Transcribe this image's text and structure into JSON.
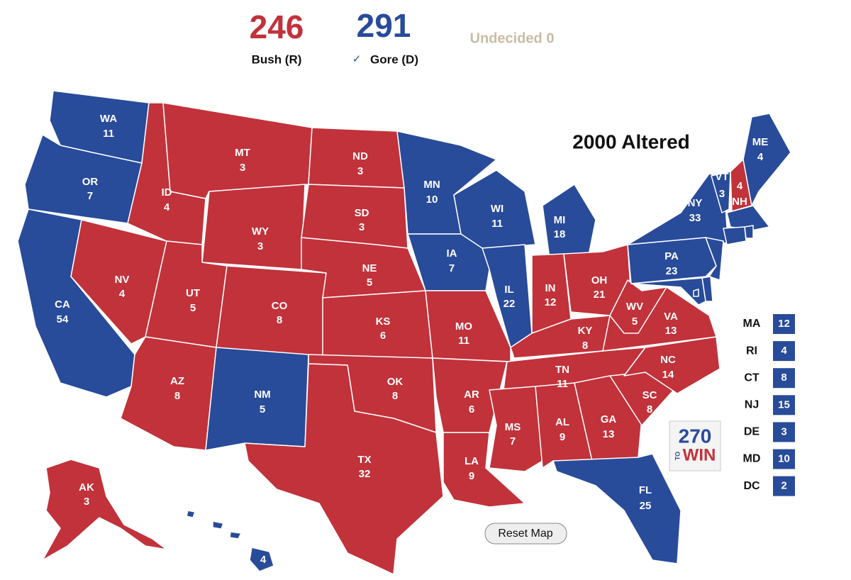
{
  "header": {
    "bush": {
      "count": 246,
      "label": "Bush (R)"
    },
    "gore": {
      "count": 291,
      "check": "✓",
      "label": "Gore (D)"
    },
    "undecided": "Undecided 0"
  },
  "map_title": "2000 Altered",
  "colors": {
    "R": "#c1323a",
    "D": "#284b9a"
  },
  "states": [
    {
      "abbr": "WA",
      "votes": 11,
      "party": "D"
    },
    {
      "abbr": "OR",
      "votes": 7,
      "party": "D"
    },
    {
      "abbr": "CA",
      "votes": 54,
      "party": "D"
    },
    {
      "abbr": "NV",
      "votes": 4,
      "party": "R"
    },
    {
      "abbr": "ID",
      "votes": 4,
      "party": "R"
    },
    {
      "abbr": "MT",
      "votes": 3,
      "party": "R"
    },
    {
      "abbr": "WY",
      "votes": 3,
      "party": "R"
    },
    {
      "abbr": "UT",
      "votes": 5,
      "party": "R"
    },
    {
      "abbr": "CO",
      "votes": 8,
      "party": "R"
    },
    {
      "abbr": "AZ",
      "votes": 8,
      "party": "R"
    },
    {
      "abbr": "NM",
      "votes": 5,
      "party": "D"
    },
    {
      "abbr": "ND",
      "votes": 3,
      "party": "R"
    },
    {
      "abbr": "SD",
      "votes": 3,
      "party": "R"
    },
    {
      "abbr": "NE",
      "votes": 5,
      "party": "R"
    },
    {
      "abbr": "KS",
      "votes": 6,
      "party": "R"
    },
    {
      "abbr": "OK",
      "votes": 8,
      "party": "R"
    },
    {
      "abbr": "TX",
      "votes": 32,
      "party": "R"
    },
    {
      "abbr": "MN",
      "votes": 10,
      "party": "D"
    },
    {
      "abbr": "IA",
      "votes": 7,
      "party": "D"
    },
    {
      "abbr": "MO",
      "votes": 11,
      "party": "R"
    },
    {
      "abbr": "AR",
      "votes": 6,
      "party": "R"
    },
    {
      "abbr": "LA",
      "votes": 9,
      "party": "R"
    },
    {
      "abbr": "WI",
      "votes": 11,
      "party": "D"
    },
    {
      "abbr": "IL",
      "votes": 22,
      "party": "D"
    },
    {
      "abbr": "MI",
      "votes": 18,
      "party": "D"
    },
    {
      "abbr": "IN",
      "votes": 12,
      "party": "R"
    },
    {
      "abbr": "OH",
      "votes": 21,
      "party": "R"
    },
    {
      "abbr": "KY",
      "votes": 8,
      "party": "R"
    },
    {
      "abbr": "TN",
      "votes": 11,
      "party": "R"
    },
    {
      "abbr": "MS",
      "votes": 7,
      "party": "R"
    },
    {
      "abbr": "AL",
      "votes": 9,
      "party": "R"
    },
    {
      "abbr": "GA",
      "votes": 13,
      "party": "R"
    },
    {
      "abbr": "FL",
      "votes": 25,
      "party": "D"
    },
    {
      "abbr": "SC",
      "votes": 8,
      "party": "R"
    },
    {
      "abbr": "NC",
      "votes": 14,
      "party": "R"
    },
    {
      "abbr": "VA",
      "votes": 13,
      "party": "R"
    },
    {
      "abbr": "WV",
      "votes": 5,
      "party": "R"
    },
    {
      "abbr": "PA",
      "votes": 23,
      "party": "D"
    },
    {
      "abbr": "NY",
      "votes": 33,
      "party": "D"
    },
    {
      "abbr": "VT",
      "votes": 3,
      "party": "D"
    },
    {
      "abbr": "NH",
      "votes": 4,
      "party": "R"
    },
    {
      "abbr": "ME",
      "votes": 4,
      "party": "D"
    },
    {
      "abbr": "AK",
      "votes": 3,
      "party": "R"
    },
    {
      "abbr": "HI",
      "votes": 4,
      "party": "D"
    }
  ],
  "small_states": [
    {
      "abbr": "MA",
      "votes": 12,
      "party": "D"
    },
    {
      "abbr": "RI",
      "votes": 4,
      "party": "D"
    },
    {
      "abbr": "CT",
      "votes": 8,
      "party": "D"
    },
    {
      "abbr": "NJ",
      "votes": 15,
      "party": "D"
    },
    {
      "abbr": "DE",
      "votes": 3,
      "party": "D"
    },
    {
      "abbr": "MD",
      "votes": 10,
      "party": "D"
    },
    {
      "abbr": "DC",
      "votes": 2,
      "party": "D"
    }
  ],
  "logo": {
    "number": "270",
    "to": "TO",
    "win": "WIN"
  },
  "reset_button": "Reset Map"
}
